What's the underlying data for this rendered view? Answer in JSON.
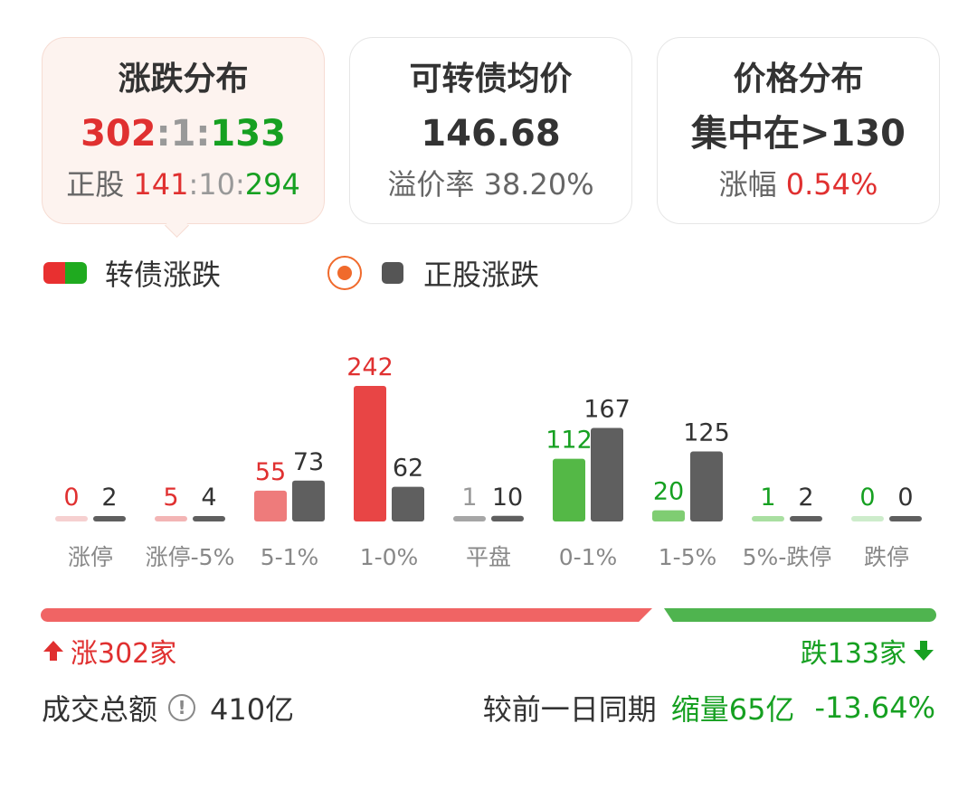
{
  "cards": [
    {
      "title": "涨跌分布",
      "main": {
        "up": "302",
        "sep1": ":",
        "flat": "1",
        "sep2": ":",
        "down": "133"
      },
      "sub": {
        "label": "正股",
        "up": "141",
        "sep1": ":",
        "flat": "10",
        "sep2": ":",
        "down": "294"
      }
    },
    {
      "title": "可转债均价",
      "main": "146.68",
      "sub": {
        "label": "溢价率",
        "value": "38.20%"
      }
    },
    {
      "title": "价格分布",
      "main": "集中在>130",
      "sub": {
        "label": "涨幅",
        "value": "0.54%"
      }
    }
  ],
  "legend": {
    "bond_label": "转债涨跌",
    "stock_label": "正股涨跌"
  },
  "colors": {
    "red": "#e03030",
    "green": "#16a021",
    "orange": "#f06a2c",
    "gray_bar": "#5f5f5f"
  },
  "chart_data": {
    "type": "bar",
    "categories": [
      "涨停",
      "涨停-5%",
      "5-1%",
      "1-0%",
      "平盘",
      "0-1%",
      "1-5%",
      "5%-跌停",
      "跌停"
    ],
    "series": [
      {
        "name": "转债涨跌",
        "values": [
          0,
          5,
          55,
          242,
          1,
          112,
          20,
          1,
          0
        ]
      },
      {
        "name": "正股涨跌",
        "values": [
          2,
          4,
          73,
          62,
          10,
          167,
          125,
          2,
          0
        ]
      }
    ]
  },
  "summary": {
    "rise_label": "涨302家",
    "fall_label": "跌133家",
    "rise_count": 302,
    "fall_count": 133
  },
  "footer": {
    "turnover_label": "成交总额",
    "turnover_value": "410亿",
    "compare_label": "较前一日同期",
    "shrink_label": "缩量65亿",
    "change_pct": "-13.64%"
  }
}
